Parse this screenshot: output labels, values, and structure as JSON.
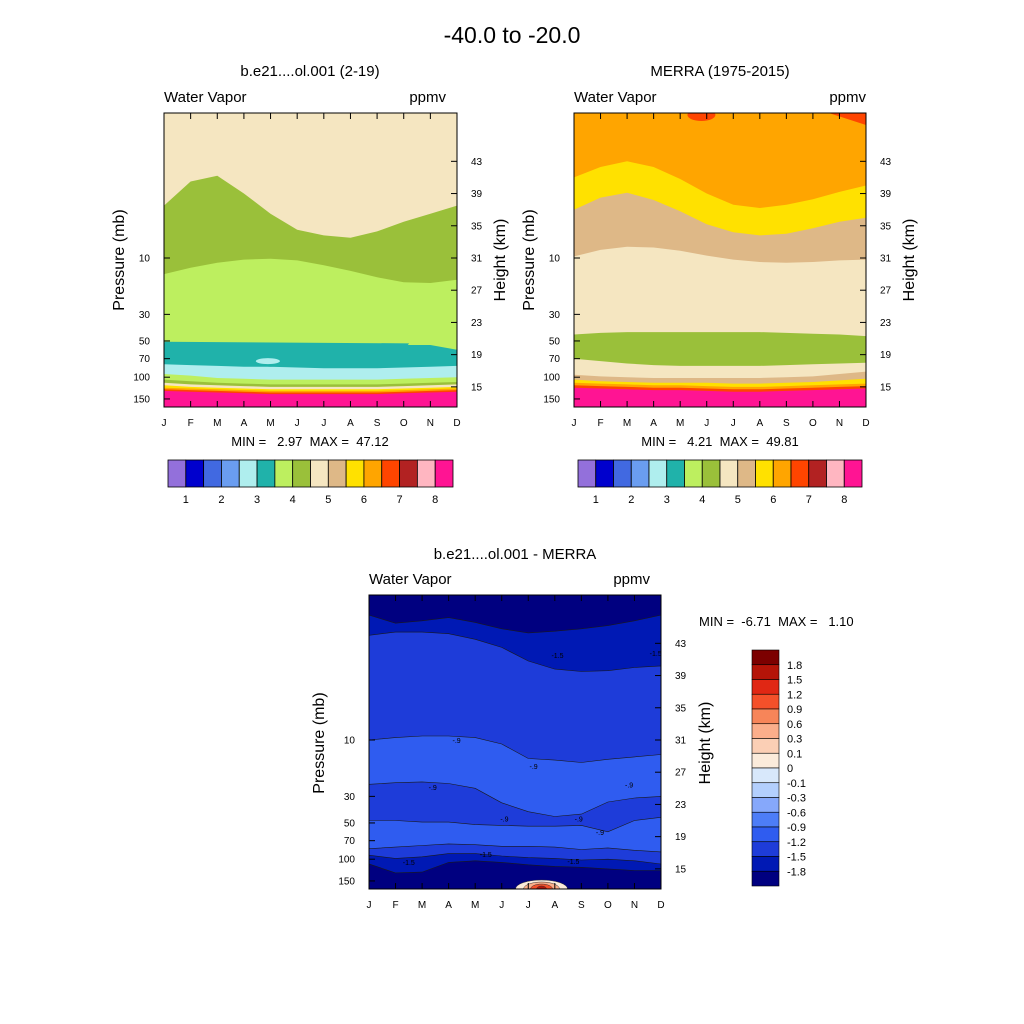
{
  "figure_title": "-40.0 to -20.0",
  "colors": {
    "seq": [
      "#9370DB",
      "#0000CD",
      "#4169E1",
      "#6A9DF0",
      "#AFEEEE",
      "#20B2AA",
      "#BDEF5F",
      "#9AC03A",
      "#F5E6C1",
      "#DEB887",
      "#FFE100",
      "#FFA500",
      "#FF4500",
      "#B22222",
      "#FFB6C1",
      "#FF1493"
    ],
    "div": [
      "#000080",
      "#0019B4",
      "#1E3CD9",
      "#2F5CF0",
      "#4D7DF7",
      "#86A8FB",
      "#B3CFFD",
      "#D8E8FB",
      "#FBEBDB",
      "#FBCFB5",
      "#FBAE8B",
      "#F78559",
      "#F4502A",
      "#E02714",
      "#B51408",
      "#7C0000"
    ]
  },
  "chart_data": [
    {
      "type": "heatmap",
      "id": "model",
      "title": "b.e21....ol.001 (2-19)",
      "variable_label": "Water Vapor",
      "units_label": "ppmv",
      "ylabel": "Pressure (mb)",
      "y2label": "Height (km)",
      "x_months": [
        "J",
        "F",
        "M",
        "A",
        "M",
        "J",
        "J",
        "A",
        "S",
        "O",
        "N",
        "D"
      ],
      "pressure_ticks": [
        "10",
        "30",
        "50",
        "70",
        "100",
        "150"
      ],
      "pressure_values": [
        10,
        30,
        50,
        70,
        100,
        150
      ],
      "height_ticks": [
        "43",
        "39",
        "35",
        "31",
        "27",
        "23",
        "19",
        "15"
      ],
      "height_values": [
        43,
        39,
        35,
        31,
        27,
        23,
        19,
        15
      ],
      "stats": "MIN =   2.97  MAX =  47.12",
      "colorbar_labels": [
        "1",
        "2",
        "3",
        "4",
        "5",
        "6",
        "7",
        "8"
      ],
      "level_contours": [
        {
          "band": "5",
          "color_index": 8,
          "top_km": [
            49,
            49,
            49,
            49,
            49,
            49,
            49,
            49,
            49,
            49,
            49,
            49
          ],
          "desc": "upper band ~5 ppmv"
        },
        {
          "band": "4.5",
          "color_index": 7,
          "top_km": [
            37.5,
            40.5,
            41.2,
            39,
            36.5,
            34.5,
            33.8,
            33.5,
            34.3,
            35.5,
            36.5,
            37.5
          ]
        },
        {
          "band": "4",
          "color_index": 6,
          "top_km": [
            29,
            29.8,
            30.4,
            30.8,
            30.9,
            30.7,
            30.1,
            29.4,
            28.6,
            28,
            27.9,
            28.3
          ]
        },
        {
          "band": "3",
          "color_index": 5,
          "top_km": [
            20.5,
            20.2,
            20.2,
            20.2,
            20.2,
            20.2,
            20.2,
            20.2,
            20.2,
            20.2,
            20.2,
            19.6
          ]
        },
        {
          "band": "3.5",
          "color_index": 4,
          "top_km": [
            17.8,
            17.7,
            17.6,
            17.5,
            17.5,
            17.4,
            17.3,
            17.3,
            17.3,
            17.4,
            17.5,
            17.6
          ]
        },
        {
          "band": "4",
          "color_index": 6,
          "top_km": [
            16.6,
            16.4,
            16.1,
            16,
            15.9,
            15.9,
            15.9,
            15.9,
            15.9,
            16,
            16.1,
            16.2
          ]
        },
        {
          "band": "4.5",
          "color_index": 7,
          "top_km": [
            15.9,
            15.7,
            15.5,
            15.4,
            15.3,
            15.3,
            15.3,
            15.3,
            15.3,
            15.4,
            15.5,
            15.6
          ]
        },
        {
          "band": "5",
          "color_index": 8,
          "top_km": [
            15.5,
            15.3,
            15.2,
            15.1,
            15,
            15,
            15,
            15,
            15,
            15.1,
            15.2,
            15.3
          ]
        },
        {
          "band": "6",
          "color_index": 10,
          "top_km": [
            15.2,
            15,
            14.9,
            14.8,
            14.7,
            14.7,
            14.7,
            14.7,
            14.7,
            14.8,
            14.9,
            15
          ]
        },
        {
          "band": "6.5",
          "color_index": 11,
          "top_km": [
            14.9,
            14.8,
            14.7,
            14.6,
            14.5,
            14.5,
            14.5,
            14.5,
            14.5,
            14.6,
            14.7,
            14.8
          ]
        },
        {
          "band": "7",
          "color_index": 12,
          "top_km": [
            14.7,
            14.6,
            14.5,
            14.4,
            14.3,
            14.3,
            14.3,
            14.3,
            14.3,
            14.4,
            14.5,
            14.6
          ]
        },
        {
          "band": "8",
          "color_index": 15,
          "top_km": [
            14.5,
            14.4,
            14.3,
            14.2,
            14.1,
            14.1,
            14.1,
            14.1,
            14.1,
            14.2,
            14.3,
            14.4
          ]
        }
      ]
    },
    {
      "type": "heatmap",
      "id": "merra",
      "title": "MERRA (1975-2015)",
      "variable_label": "Water Vapor",
      "units_label": "ppmv",
      "ylabel": "Pressure (mb)",
      "y2label": "Height (km)",
      "x_months": [
        "J",
        "F",
        "M",
        "A",
        "M",
        "J",
        "J",
        "A",
        "S",
        "O",
        "N",
        "D"
      ],
      "pressure_ticks": [
        "10",
        "30",
        "50",
        "70",
        "100",
        "150"
      ],
      "pressure_values": [
        10,
        30,
        50,
        70,
        100,
        150
      ],
      "height_ticks": [
        "43",
        "39",
        "35",
        "31",
        "27",
        "23",
        "19",
        "15"
      ],
      "height_values": [
        43,
        39,
        35,
        31,
        27,
        23,
        19,
        15
      ],
      "stats": "MIN =   4.21  MAX =  49.81",
      "colorbar_labels": [
        "1",
        "2",
        "3",
        "4",
        "5",
        "6",
        "7",
        "8"
      ],
      "level_contours": [
        {
          "band": "6.5",
          "color_index": 11,
          "top_km": [
            49,
            49,
            49,
            49,
            49,
            49,
            49,
            49,
            49,
            49,
            49,
            49
          ]
        },
        {
          "band": "6",
          "color_index": 10,
          "top_km": [
            41,
            42.3,
            43,
            42.3,
            40.8,
            39,
            37.6,
            37.2,
            37.6,
            38.3,
            39.2,
            40
          ]
        },
        {
          "band": "5.5",
          "color_index": 9,
          "top_km": [
            37,
            38.5,
            39.1,
            38.2,
            36.8,
            35.2,
            34.2,
            33.8,
            34,
            34.7,
            35.5,
            36
          ]
        },
        {
          "band": "5",
          "color_index": 8,
          "top_km": [
            31.2,
            32,
            32.4,
            32.3,
            31.9,
            31.3,
            30.8,
            30.5,
            30.4,
            30.5,
            30.7,
            30.8
          ]
        },
        {
          "band": "4",
          "color_index": 7,
          "top_km": [
            21.5,
            21.7,
            21.8,
            21.8,
            21.8,
            21.8,
            21.8,
            21.8,
            21.7,
            21.6,
            21.5,
            21.3
          ]
        },
        {
          "band": "5",
          "color_index": 8,
          "top_km": [
            18.5,
            18.2,
            17.9,
            17.7,
            17.6,
            17.6,
            17.6,
            17.6,
            17.7,
            17.8,
            17.9,
            18
          ]
        },
        {
          "band": "5.5",
          "color_index": 9,
          "top_km": [
            16.5,
            16.3,
            16.2,
            16.1,
            16.1,
            16.1,
            16.1,
            16.1,
            16.2,
            16.3,
            16.6,
            16.9
          ]
        },
        {
          "band": "6",
          "color_index": 10,
          "top_km": [
            15.9,
            15.7,
            15.6,
            15.5,
            15.5,
            15.5,
            15.4,
            15.4,
            15.5,
            15.6,
            15.8,
            16
          ]
        },
        {
          "band": "6.5",
          "color_index": 11,
          "top_km": [
            15.5,
            15.4,
            15.3,
            15.2,
            15.2,
            15.1,
            15,
            15,
            15.1,
            15.2,
            15.3,
            15.4
          ]
        },
        {
          "band": "7",
          "color_index": 12,
          "top_km": [
            15.2,
            15.1,
            15,
            14.9,
            14.9,
            14.8,
            14.7,
            14.7,
            14.8,
            14.9,
            15,
            15.1
          ]
        },
        {
          "band": "8",
          "color_index": 15,
          "top_km": [
            14.9,
            14.8,
            14.7,
            14.6,
            14.6,
            14.5,
            14.4,
            14.4,
            14.5,
            14.6,
            14.7,
            14.8
          ]
        }
      ]
    },
    {
      "type": "heatmap",
      "id": "diff",
      "title": "b.e21....ol.001 - MERRA",
      "variable_label": "Water Vapor",
      "units_label": "ppmv",
      "ylabel": "Pressure (mb)",
      "y2label": "Height (km)",
      "x_months": [
        "J",
        "F",
        "M",
        "A",
        "M",
        "J",
        "J",
        "A",
        "S",
        "O",
        "N",
        "D"
      ],
      "pressure_ticks": [
        "10",
        "30",
        "50",
        "70",
        "100",
        "150"
      ],
      "pressure_values": [
        10,
        30,
        50,
        70,
        100,
        150
      ],
      "height_ticks": [
        "43",
        "39",
        "35",
        "31",
        "27",
        "23",
        "19",
        "15"
      ],
      "height_values": [
        43,
        39,
        35,
        31,
        27,
        23,
        19,
        15
      ],
      "stats": "MIN =  -6.71  MAX =   1.10",
      "colorbar_labels": [
        "1.8",
        "1.5",
        "1.2",
        "0.9",
        "0.6",
        "0.3",
        "0.1",
        "0",
        "-0.1",
        "-0.3",
        "-0.6",
        "-0.9",
        "-1.2",
        "-1.5",
        "-1.8"
      ],
      "contour_labels": [
        {
          "text": "-1.5",
          "month": 7.1,
          "km": 41.2
        },
        {
          "text": "-1.5",
          "month": 10.8,
          "km": 41.4
        },
        {
          "text": "-.9",
          "month": 3.3,
          "km": 30.6
        },
        {
          "text": "-.9",
          "month": 6.2,
          "km": 27.4
        },
        {
          "text": "-.9",
          "month": 2.4,
          "km": 24.8
        },
        {
          "text": "-.9",
          "month": 9.8,
          "km": 25.1
        },
        {
          "text": "-.9",
          "month": 5.1,
          "km": 20.9
        },
        {
          "text": "-.9",
          "month": 7.9,
          "km": 20.9
        },
        {
          "text": "-.9",
          "month": 8.7,
          "km": 19.2
        },
        {
          "text": "-1.5",
          "month": 4.4,
          "km": 16.5
        },
        {
          "text": "-1.5",
          "month": 7.7,
          "km": 15.6
        },
        {
          "text": "-1.5",
          "month": 1.5,
          "km": 15.5
        }
      ],
      "level_contours": [
        {
          "band": "-1.8",
          "color_index": 0,
          "top_km": [
            49,
            49,
            49,
            49,
            49,
            49,
            49,
            49,
            49,
            49,
            49,
            49
          ]
        },
        {
          "band": "-1.5",
          "color_index": 1,
          "top_km": [
            46.5,
            45.5,
            45.8,
            46.2,
            45.6,
            44.8,
            44.3,
            44.5,
            44.8,
            45.2,
            45.8,
            46.5
          ]
        },
        {
          "band": "-1.2",
          "color_index": 2,
          "top_km": [
            44,
            44.4,
            44.4,
            44.2,
            43.5,
            42.5,
            40.8,
            39.8,
            39.5,
            39.6,
            40,
            40.2
          ]
        },
        {
          "band": "-0.9",
          "color_index": 3,
          "top_km": [
            31,
            31.3,
            31.5,
            31.5,
            31.3,
            30.5,
            28.7,
            28.5,
            28.2,
            28.6,
            28.9,
            29.2
          ]
        },
        {
          "band": "-1.2",
          "color_index": 2,
          "top_km": [
            25.5,
            25.7,
            25.8,
            25.6,
            25,
            23.2,
            22.1,
            21.5,
            21.8,
            23.3,
            23.8,
            24
          ]
        },
        {
          "band": "-0.9",
          "color_index": 3,
          "top_km": [
            21,
            21,
            20.8,
            20.8,
            20.5,
            20.4,
            20.3,
            20.3,
            20.4,
            19.6,
            21,
            21.4
          ]
        },
        {
          "band": "-1.2",
          "color_index": 2,
          "top_km": [
            17.5,
            17.7,
            17.9,
            18.1,
            18,
            17.8,
            17.8,
            17.7,
            17.4,
            17.6,
            17.3,
            17.1
          ]
        },
        {
          "band": "-1.5",
          "color_index": 1,
          "top_km": [
            16.7,
            16.3,
            16.5,
            16.9,
            16.9,
            16.6,
            16.4,
            16.3,
            16.1,
            16.2,
            16,
            15.6
          ]
        },
        {
          "band": "-1.8",
          "color_index": 0,
          "top_km": [
            15.6,
            14.5,
            14.6,
            15.8,
            16,
            15.8,
            15.5,
            15.3,
            15.2,
            15,
            14.8,
            14.8
          ]
        }
      ],
      "positive_spot": {
        "month_center": 6.5,
        "km_top": 13.8,
        "max": 1.1
      }
    }
  ]
}
